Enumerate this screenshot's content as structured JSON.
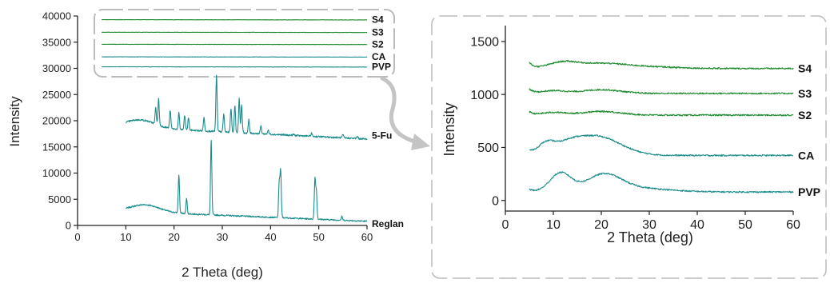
{
  "chart_data": [
    {
      "type": "line",
      "xlabel": "2 Theta (deg)",
      "ylabel": "Intensity",
      "xlim": [
        0,
        60
      ],
      "ylim": [
        0,
        40000
      ],
      "xticks": [
        0,
        10,
        20,
        30,
        40,
        50,
        60
      ],
      "yticks": [
        0,
        5000,
        10000,
        15000,
        20000,
        25000,
        30000,
        35000,
        40000
      ],
      "series": [
        {
          "name": "Reglan",
          "color": "#1e8c8c",
          "x_range": [
            10,
            60
          ],
          "baseline_start": 2700,
          "baseline_end": 800,
          "halo": {
            "center": 14,
            "width": 3,
            "height": 1400
          },
          "peaks": [
            [
              14.5,
              2500
            ],
            [
              21.0,
              9700
            ],
            [
              22.6,
              5200
            ],
            [
              24.0,
              1500
            ],
            [
              26.0,
              1600
            ],
            [
              27.0,
              1800
            ],
            [
              27.7,
              16300
            ],
            [
              29.5,
              1600
            ],
            [
              31.4,
              1900
            ],
            [
              33.0,
              1500
            ],
            [
              38.5,
              1500
            ],
            [
              41.8,
              8300
            ],
            [
              42.1,
              10300
            ],
            [
              45.3,
              1200
            ],
            [
              47.5,
              1200
            ],
            [
              49.2,
              8800
            ],
            [
              49.5,
              6500
            ],
            [
              54.8,
              1700
            ]
          ]
        },
        {
          "name": "5-Fu",
          "color": "#1e8c8c",
          "x_range": [
            10,
            60
          ],
          "baseline_start": 18800,
          "baseline_end": 16500,
          "halo": {
            "center": 13,
            "width": 3,
            "height": 1500
          },
          "peaks": [
            [
              16.2,
              22500
            ],
            [
              16.8,
              24200
            ],
            [
              19.2,
              22000
            ],
            [
              21.0,
              21500
            ],
            [
              22.2,
              21000
            ],
            [
              23.0,
              20600
            ],
            [
              26.2,
              20600
            ],
            [
              28.8,
              28700
            ],
            [
              30.3,
              21300
            ],
            [
              31.8,
              22400
            ],
            [
              32.6,
              23000
            ],
            [
              33.5,
              24200
            ],
            [
              34.0,
              23000
            ],
            [
              35.5,
              20200
            ],
            [
              38.0,
              19000
            ],
            [
              39.5,
              18200
            ],
            [
              44.8,
              17400
            ],
            [
              48.5,
              17600
            ],
            [
              55.0,
              17300
            ],
            [
              58.0,
              17000
            ]
          ]
        },
        {
          "name": "PVP",
          "color": "#1e8c8c",
          "x_range": [
            5,
            60
          ],
          "baseline_start": 30300,
          "baseline_end": 30250
        },
        {
          "name": "CA",
          "color": "#1e8c8c",
          "x_range": [
            5,
            60
          ],
          "baseline_start": 32200,
          "baseline_end": 32150
        },
        {
          "name": "S2",
          "color": "#1f8a2e",
          "x_range": [
            5,
            60
          ],
          "baseline_start": 34600,
          "baseline_end": 34550
        },
        {
          "name": "S3",
          "color": "#1f8a2e",
          "x_range": [
            5,
            60
          ],
          "baseline_start": 36900,
          "baseline_end": 36850
        },
        {
          "name": "S4",
          "color": "#1f8a2e",
          "x_range": [
            5,
            60
          ],
          "baseline_start": 39300,
          "baseline_end": 39250
        }
      ]
    },
    {
      "type": "line",
      "xlabel": "2 Theta (deg)",
      "ylabel": "Intensity",
      "xlim": [
        0,
        60
      ],
      "ylim": [
        -100,
        1650
      ],
      "xticks": [
        0,
        10,
        20,
        30,
        40,
        50,
        60
      ],
      "yticks": [
        0,
        500,
        1000,
        1500
      ],
      "series": [
        {
          "name": "PVP",
          "color": "#1e8c8c",
          "x_range": [
            5,
            60
          ],
          "baseline": 80,
          "humps": [
            [
              11.5,
              2.2,
              175
            ],
            [
              20.5,
              3.5,
              145
            ],
            [
              26,
              7,
              40
            ]
          ],
          "start_offset": 25
        },
        {
          "name": "CA",
          "color": "#1e8c8c",
          "x_range": [
            5,
            60
          ],
          "baseline": 425,
          "humps": [
            [
              8.5,
              1.8,
              110
            ],
            [
              13,
              2.5,
              80
            ],
            [
              18,
              4,
              150
            ],
            [
              23,
              4,
              60
            ]
          ],
          "start_offset": 40
        },
        {
          "name": "S2",
          "color": "#1f8a2e",
          "x_range": [
            5,
            60
          ],
          "baseline": 805,
          "humps": [
            [
              10,
              2.5,
              25
            ],
            [
              20,
              4,
              35
            ]
          ],
          "start_offset": 30
        },
        {
          "name": "S3",
          "color": "#1f8a2e",
          "x_range": [
            5,
            60
          ],
          "baseline": 1010,
          "humps": [
            [
              10,
              2.5,
              25
            ],
            [
              20,
              4,
              35
            ]
          ],
          "start_offset": 40
        },
        {
          "name": "S4",
          "color": "#1f8a2e",
          "x_range": [
            5,
            60
          ],
          "baseline": 1245,
          "humps": [
            [
              12,
              3,
              55
            ],
            [
              20,
              5,
              45
            ],
            [
              30,
              6,
              15
            ]
          ],
          "start_offset": 55
        }
      ]
    }
  ],
  "colors": {
    "axis": "#222222",
    "callout": "#bbbbbb",
    "frame": "#bbbbbb"
  }
}
